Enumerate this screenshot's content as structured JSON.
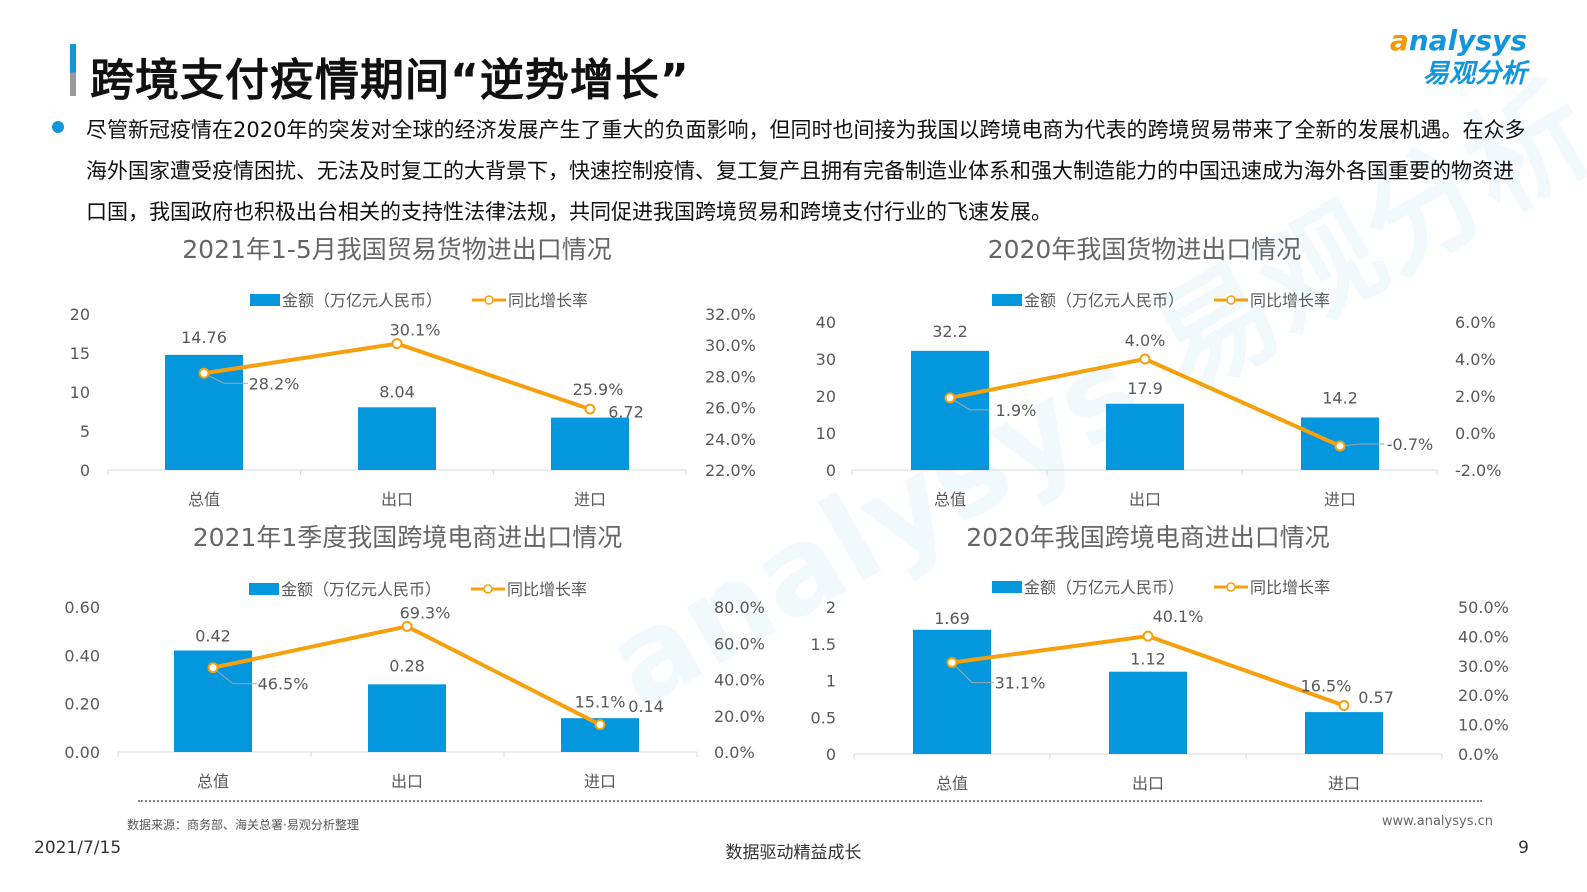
{
  "header": {
    "title": "跨境支付疫情期间“逆势增长”",
    "logo_en": "analysys",
    "logo_cn": "易观分析"
  },
  "intro": "尽管新冠疫情在2020年的突发对全球的经济发展产生了重大的负面影响，但同时也间接为我国以跨境电商为代表的跨境贸易带来了全新的发展机遇。在众多海外国家遭受疫情困扰、无法及时复工的大背景下，快速控制疫情、复工复产且拥有完备制造业体系和强大制造能力的中国迅速成为海外各国重要的物资进口国，我国政府也积极出台相关的支持性法律法规，共同促进我国跨境贸易和跨境支付行业的飞速发展。",
  "colors": {
    "bar": "#0597dd",
    "line": "#f5a00c",
    "accent": "#1296db"
  },
  "chart_data": [
    {
      "type": "bar+line",
      "title": "2021年1-5月我国贸易货物进出口情况",
      "categories": [
        "总值",
        "出口",
        "进口"
      ],
      "series": [
        {
          "name": "金额（万亿元人民币）",
          "type": "bar",
          "axis": "left",
          "values": [
            14.76,
            8.04,
            6.72
          ],
          "labels": [
            "14.76",
            "8.04",
            "6.72"
          ]
        },
        {
          "name": "同比增长率",
          "type": "line",
          "axis": "right",
          "values": [
            28.2,
            30.1,
            25.9
          ],
          "labels": [
            "28.2%",
            "30.1%",
            "25.9%"
          ]
        }
      ],
      "left_axis": {
        "range": [
          0,
          20
        ],
        "ticks": [
          "0",
          "5",
          "10",
          "15",
          "20"
        ]
      },
      "right_axis": {
        "range": [
          22,
          32
        ],
        "ticks": [
          "22.0%",
          "24.0%",
          "26.0%",
          "28.0%",
          "30.0%",
          "32.0%"
        ]
      },
      "legend": "top",
      "grid": false
    },
    {
      "type": "bar+line",
      "title": "2020年我国货物进出口情况",
      "categories": [
        "总值",
        "出口",
        "进口"
      ],
      "series": [
        {
          "name": "金额（万亿元人民币）",
          "type": "bar",
          "axis": "left",
          "values": [
            32.2,
            17.9,
            14.2
          ],
          "labels": [
            "32.2",
            "17.9",
            "14.2"
          ]
        },
        {
          "name": "同比增长率",
          "type": "line",
          "axis": "right",
          "values": [
            1.9,
            4.0,
            -0.7
          ],
          "labels": [
            "1.9%",
            "4.0%",
            "-0.7%"
          ]
        }
      ],
      "left_axis": {
        "range": [
          0,
          40
        ],
        "ticks": [
          "0",
          "10",
          "20",
          "30",
          "40"
        ]
      },
      "right_axis": {
        "range": [
          -2,
          6
        ],
        "ticks": [
          "-2.0%",
          "0.0%",
          "2.0%",
          "4.0%",
          "6.0%"
        ]
      },
      "legend": "top",
      "grid": false
    },
    {
      "type": "bar+line",
      "title": "2021年1季度我国跨境电商进出口情况",
      "categories": [
        "总值",
        "出口",
        "进口"
      ],
      "series": [
        {
          "name": "金额（万亿元人民币）",
          "type": "bar",
          "axis": "left",
          "values": [
            0.42,
            0.28,
            0.14
          ],
          "labels": [
            "0.42",
            "0.28",
            "0.14"
          ]
        },
        {
          "name": "同比增长率",
          "type": "line",
          "axis": "right",
          "values": [
            46.5,
            69.3,
            15.1
          ],
          "labels": [
            "46.5%",
            "69.3%",
            "15.1%"
          ]
        }
      ],
      "left_axis": {
        "range": [
          0,
          0.6
        ],
        "ticks": [
          "0.00",
          "0.20",
          "0.40",
          "0.60"
        ]
      },
      "right_axis": {
        "range": [
          0,
          80
        ],
        "ticks": [
          "0.0%",
          "20.0%",
          "40.0%",
          "60.0%",
          "80.0%"
        ]
      },
      "legend": "top",
      "grid": false
    },
    {
      "type": "bar+line",
      "title": "2020年我国跨境电商进出口情况",
      "categories": [
        "总值",
        "出口",
        "进口"
      ],
      "series": [
        {
          "name": "金额（万亿元人民币）",
          "type": "bar",
          "axis": "left",
          "values": [
            1.69,
            1.12,
            0.57
          ],
          "labels": [
            "1.69",
            "1.12",
            "0.57"
          ]
        },
        {
          "name": "同比增长率",
          "type": "line",
          "axis": "right",
          "values": [
            31.1,
            40.1,
            16.5
          ],
          "labels": [
            "31.1%",
            "40.1%",
            "16.5%"
          ]
        }
      ],
      "left_axis": {
        "range": [
          0,
          2
        ],
        "ticks": [
          "0",
          "0.5",
          "1",
          "1.5",
          "2"
        ]
      },
      "right_axis": {
        "range": [
          0,
          50
        ],
        "ticks": [
          "0.0%",
          "10.0%",
          "20.0%",
          "30.0%",
          "40.0%",
          "50.0%"
        ]
      },
      "legend": "top",
      "grid": false
    }
  ],
  "footer": {
    "source": "数据来源：商务部、海关总署·易观分析整理",
    "website": "www.analysys.cn",
    "date": "2021/7/15",
    "slogan": "数据驱动精益成长",
    "page": "9"
  }
}
